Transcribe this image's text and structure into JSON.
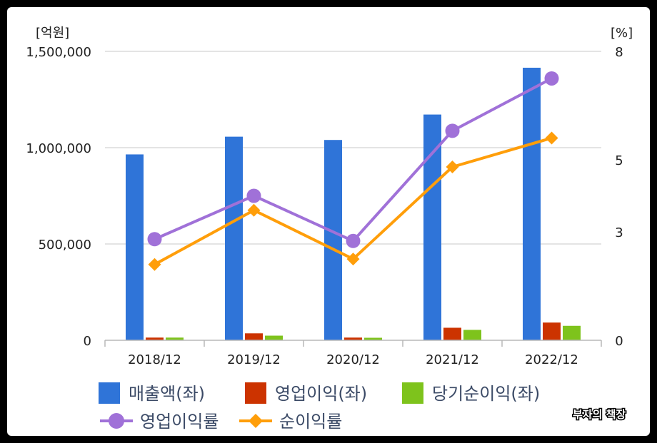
{
  "chart_data": {
    "type": "bar",
    "categories": [
      "2018/12",
      "2019/12",
      "2020/12",
      "2021/12",
      "2022/12"
    ],
    "y_left": {
      "unit": "[억원]",
      "range": [
        0,
        1500000
      ],
      "ticks": [
        "0",
        "500,000",
        "1,000,000",
        "1,500,000"
      ]
    },
    "y_right": {
      "unit": "[%]",
      "range": [
        0,
        8
      ],
      "ticks": [
        "0",
        "3",
        "5",
        "8"
      ]
    },
    "bar_series": [
      {
        "name": "매출액(좌)",
        "color": "#2f74d8",
        "values": [
          965000,
          1057000,
          1040000,
          1172000,
          1415000
        ]
      },
      {
        "name": "영업이익(좌)",
        "color": "#cc3300",
        "values": [
          14000,
          36000,
          14000,
          65000,
          92000
        ]
      },
      {
        "name": "당기순이익(좌)",
        "color": "#7ec31c",
        "values": [
          14000,
          24000,
          13000,
          54000,
          75000
        ]
      }
    ],
    "line_series": [
      {
        "name": "영업이익률",
        "color": "#a071d8",
        "marker": "circle",
        "values": [
          2.8,
          4.0,
          2.75,
          5.8,
          7.25
        ]
      },
      {
        "name": "순이익률",
        "color": "#ff9e0a",
        "marker": "diamond",
        "values": [
          2.1,
          3.6,
          2.25,
          4.8,
          5.6
        ]
      }
    ],
    "grid": true,
    "legend_position": "bottom"
  },
  "watermark": "부자의 책장"
}
